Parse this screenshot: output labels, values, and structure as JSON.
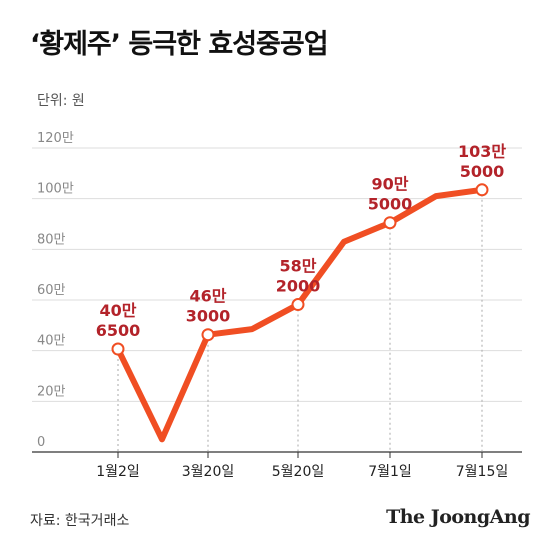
{
  "title": "‘황제주’ 등극한 효성중공업",
  "unit_label": "단위: 원",
  "source": "자료: 한국거래소",
  "logo_text": "The JoongAng",
  "colors": {
    "line": "#f04e23",
    "label": "#b3232a",
    "grid": "#dddddd",
    "axis": "#333333"
  },
  "chart_data": {
    "type": "line",
    "title": "‘황제주’ 등극한 효성중공업",
    "y_unit": "원",
    "ylim": [
      0,
      1200000
    ],
    "y_ticks": [
      0,
      200000,
      400000,
      600000,
      800000,
      1000000,
      1200000
    ],
    "y_tick_labels": [
      "0",
      "20만",
      "40만",
      "60만",
      "80만",
      "100만",
      "120만"
    ],
    "x_tick_labels": [
      "1월2일",
      "3월20일",
      "5월20일",
      "7월1일",
      "7월15일"
    ],
    "grid": true,
    "series": [
      {
        "values": [
          406500,
          50000,
          463000,
          485000,
          582000,
          830000,
          905000,
          1010000,
          1035000
        ]
      }
    ],
    "highlighted_points": [
      {
        "index": 0,
        "x_label": "1월2일",
        "value": 406500,
        "label_line1": "40만",
        "label_line2": "6500"
      },
      {
        "index": 2,
        "x_label": "3월20일",
        "value": 463000,
        "label_line1": "46만",
        "label_line2": "3000"
      },
      {
        "index": 4,
        "x_label": "5월20일",
        "value": 582000,
        "label_line1": "58만",
        "label_line2": "2000"
      },
      {
        "index": 6,
        "x_label": "7월1일",
        "value": 905000,
        "label_line1": "90만",
        "label_line2": "5000"
      },
      {
        "index": 8,
        "x_label": "7월15일",
        "value": 1035000,
        "label_line1": "103만",
        "label_line2": "5000"
      }
    ]
  }
}
